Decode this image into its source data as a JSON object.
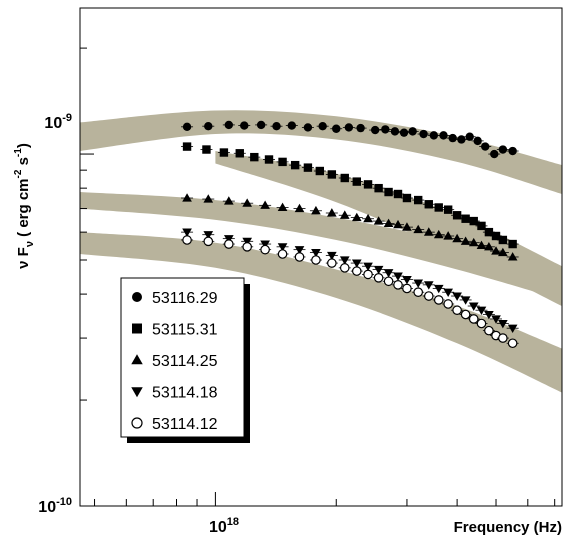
{
  "chart_data": {
    "type": "scatter",
    "title": "",
    "xlabel": "Frequency (Hz)",
    "ylabel": "ν F_ν ( erg cm^-2 s^-1 )",
    "ylabel_parts": {
      "main": "ν F",
      "sub": "ν",
      "open": " ( erg cm",
      "exp1": "-2",
      "mid": " s",
      "exp2": "-1",
      "close": ")"
    },
    "x_scale": "log",
    "y_scale": "log",
    "xlim": [
      4.6e+17,
      7.3e+18
    ],
    "ylim": [
      1e-10,
      2.6e-09
    ],
    "x_tick_labels": [
      {
        "value": 1e+18,
        "base": "10",
        "exp": "18"
      }
    ],
    "y_tick_labels": [
      {
        "value": 1e-09,
        "base": "10",
        "exp": "-9"
      },
      {
        "value": 1e-10,
        "base": "10",
        "exp": "-10"
      }
    ],
    "grid": false,
    "legend_position": "lower-left",
    "bands": [
      {
        "color": "#b8b39c",
        "points": [
          [
            4.6e+17,
            1.02e-09,
            1.23e-09
          ],
          [
            1e+18,
            1.14e-09,
            1.33e-09
          ],
          [
            2e+18,
            1.1e-09,
            1.28e-09
          ],
          [
            4e+18,
            9.5e-10,
            1.12e-09
          ],
          [
            7.3e+18,
            7.7e-10,
            9.3e-10
          ]
        ]
      },
      {
        "color": "#b8b39c",
        "points": [
          [
            1e+18,
            9.4e-10,
            1.02e-09
          ],
          [
            2e+18,
            7.3e-10,
            8.8e-10
          ],
          [
            4e+18,
            5.2e-10,
            6.7e-10
          ],
          [
            7.3e+18,
            3.7e-10,
            4.8e-10
          ]
        ]
      },
      {
        "color": "#b8b39c",
        "points": [
          [
            4.6e+17,
            7e-10,
            7.8e-10
          ],
          [
            1e+18,
            6.5e-10,
            7.4e-10
          ],
          [
            2e+18,
            5.7e-10,
            6.6e-10
          ],
          [
            4e+18,
            4.7e-10,
            5.6e-10
          ],
          [
            7.3e+18,
            3.85e-10,
            4.7e-10
          ]
        ]
      },
      {
        "color": "#b8b39c",
        "points": [
          [
            4.6e+17,
            5.2e-10,
            6e-10
          ],
          [
            1e+18,
            4.75e-10,
            5.6e-10
          ],
          [
            2e+18,
            3.9e-10,
            4.7e-10
          ],
          [
            4e+18,
            2.9e-10,
            3.7e-10
          ],
          [
            7.3e+18,
            2.1e-10,
            2.8e-10
          ]
        ]
      }
    ],
    "series": [
      {
        "name": "53116.29",
        "marker": "circle-filled",
        "x": [
          8.5e+17,
          9.6e+17,
          1.08e+18,
          1.18e+18,
          1.3e+18,
          1.42e+18,
          1.55e+18,
          1.7e+18,
          1.85e+18,
          2e+18,
          2.15e+18,
          2.3e+18,
          2.5e+18,
          2.65e+18,
          2.8e+18,
          2.95e+18,
          3.1e+18,
          3.3e+18,
          3.5e+18,
          3.7e+18,
          3.9e+18,
          4.1e+18,
          4.3e+18,
          4.5e+18,
          4.7e+18,
          4.95e+18,
          5.2e+18,
          5.5e+18
        ],
        "y": [
          1.195e-09,
          1.2e-09,
          1.21e-09,
          1.205e-09,
          1.21e-09,
          1.2e-09,
          1.205e-09,
          1.19e-09,
          1.2e-09,
          1.18e-09,
          1.19e-09,
          1.185e-09,
          1.17e-09,
          1.175e-09,
          1.16e-09,
          1.15e-09,
          1.16e-09,
          1.14e-09,
          1.13e-09,
          1.13e-09,
          1.11e-09,
          1.1e-09,
          1.12e-09,
          1.09e-09,
          1.05e-09,
          1e-09,
          1.03e-09,
          1.02e-09
        ]
      },
      {
        "name": "53115.31",
        "marker": "square-filled",
        "x": [
          8.5e+17,
          9.5e+17,
          1.05e+18,
          1.15e+18,
          1.25e+18,
          1.36e+18,
          1.47e+18,
          1.58e+18,
          1.7e+18,
          1.82e+18,
          1.95e+18,
          2.1e+18,
          2.25e+18,
          2.4e+18,
          2.55e+18,
          2.7e+18,
          2.85e+18,
          3e+18,
          3.2e+18,
          3.4e+18,
          3.6e+18,
          3.8e+18,
          4e+18,
          4.2e+18,
          4.4e+18,
          4.6e+18,
          4.8e+18,
          5e+18,
          5.2e+18,
          5.5e+18
        ],
        "y": [
          1.05e-09,
          1.03e-09,
          1.01e-09,
          1.005e-09,
          9.8e-10,
          9.65e-10,
          9.5e-10,
          9.3e-10,
          9.15e-10,
          8.95e-10,
          8.75e-10,
          8.55e-10,
          8.35e-10,
          8.2e-10,
          8e-10,
          7.8e-10,
          7.7e-10,
          7.5e-10,
          7.4e-10,
          7.2e-10,
          7.05e-10,
          6.95e-10,
          6.7e-10,
          6.55e-10,
          6.45e-10,
          6.25e-10,
          6e-10,
          5.85e-10,
          5.7e-10,
          5.55e-10
        ]
      },
      {
        "name": "53114.25",
        "marker": "triangle-up-filled",
        "x": [
          8.5e+17,
          9.6e+17,
          1.08e+18,
          1.2e+18,
          1.33e+18,
          1.47e+18,
          1.62e+18,
          1.78e+18,
          1.95e+18,
          2.1e+18,
          2.25e+18,
          2.4e+18,
          2.55e+18,
          2.7e+18,
          2.85e+18,
          3e+18,
          3.2e+18,
          3.4e+18,
          3.6e+18,
          3.8e+18,
          4e+18,
          4.2e+18,
          4.4e+18,
          4.6e+18,
          4.8e+18,
          5e+18,
          5.2e+18,
          5.5e+18
        ],
        "y": [
          7.5e-10,
          7.45e-10,
          7.35e-10,
          7.25e-10,
          7.15e-10,
          7.05e-10,
          7e-10,
          6.9e-10,
          6.8e-10,
          6.7e-10,
          6.6e-10,
          6.55e-10,
          6.45e-10,
          6.35e-10,
          6.3e-10,
          6.2e-10,
          6.1e-10,
          6e-10,
          5.9e-10,
          5.85e-10,
          5.75e-10,
          5.65e-10,
          5.6e-10,
          5.5e-10,
          5.45e-10,
          5.3e-10,
          5.25e-10,
          5.1e-10
        ]
      },
      {
        "name": "53114.18",
        "marker": "triangle-down-filled",
        "x": [
          8.5e+17,
          9.6e+17,
          1.08e+18,
          1.2e+18,
          1.33e+18,
          1.47e+18,
          1.62e+18,
          1.78e+18,
          1.95e+18,
          2.1e+18,
          2.25e+18,
          2.4e+18,
          2.55e+18,
          2.7e+18,
          2.85e+18,
          3e+18,
          3.2e+18,
          3.4e+18,
          3.6e+18,
          3.8e+18,
          4e+18,
          4.2e+18,
          4.4e+18,
          4.6e+18,
          4.8e+18,
          5e+18,
          5.2e+18,
          5.5e+18
        ],
        "y": [
          6e-10,
          5.9e-10,
          5.75e-10,
          5.65e-10,
          5.55e-10,
          5.45e-10,
          5.35e-10,
          5.25e-10,
          5.15e-10,
          5e-10,
          4.9e-10,
          4.8e-10,
          4.7e-10,
          4.6e-10,
          4.5e-10,
          4.4e-10,
          4.3e-10,
          4.25e-10,
          4.15e-10,
          4.05e-10,
          3.95e-10,
          3.85e-10,
          3.7e-10,
          3.6e-10,
          3.5e-10,
          3.4e-10,
          3.3e-10,
          3.2e-10
        ]
      },
      {
        "name": "53114.12",
        "marker": "circle-open",
        "x": [
          8.5e+17,
          9.6e+17,
          1.08e+18,
          1.2e+18,
          1.33e+18,
          1.47e+18,
          1.62e+18,
          1.78e+18,
          1.95e+18,
          2.1e+18,
          2.25e+18,
          2.4e+18,
          2.55e+18,
          2.7e+18,
          2.85e+18,
          3e+18,
          3.2e+18,
          3.4e+18,
          3.6e+18,
          3.8e+18,
          4e+18,
          4.2e+18,
          4.4e+18,
          4.6e+18,
          4.8e+18,
          5e+18,
          5.2e+18,
          5.5e+18
        ],
        "y": [
          5.7e-10,
          5.65e-10,
          5.55e-10,
          5.45e-10,
          5.35e-10,
          5.2e-10,
          5.1e-10,
          5e-10,
          4.9e-10,
          4.75e-10,
          4.65e-10,
          4.55e-10,
          4.45e-10,
          4.35e-10,
          4.25e-10,
          4.15e-10,
          4.05e-10,
          3.95e-10,
          3.85e-10,
          3.75e-10,
          3.6e-10,
          3.5e-10,
          3.4e-10,
          3.3e-10,
          3.15e-10,
          3.05e-10,
          3e-10,
          2.9e-10
        ]
      }
    ]
  }
}
